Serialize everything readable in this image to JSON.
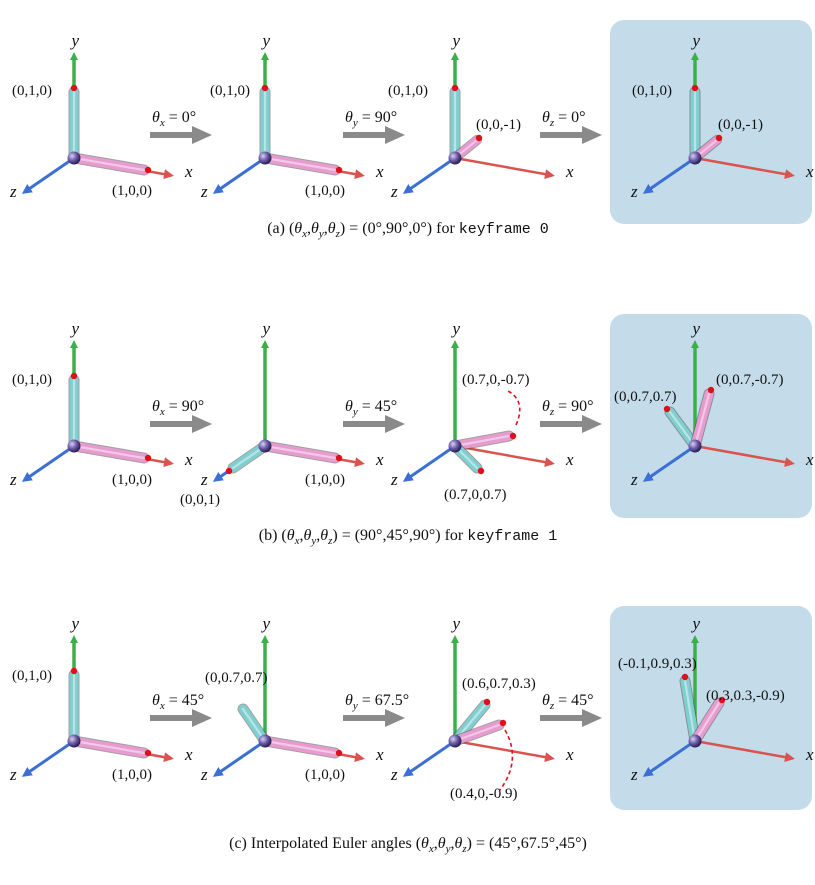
{
  "colors": {
    "y_axis": "#3bb04a",
    "x_axis": "#d9534f",
    "z_axis": "#3b6fd4",
    "cyl_cyan": "#7fcfd0",
    "cyl_pink": "#e79bd0",
    "result_bg": "#c4dcea",
    "marker": "#e0101a",
    "arrow": "#8a8a8a"
  },
  "axis_labels": {
    "x": "x",
    "y": "y",
    "z": "z"
  },
  "rows": [
    {
      "caption": {
        "prefix": "(a) (",
        "tx": "θ",
        "tx_sub": "x",
        "ty": "θ",
        "ty_sub": "y",
        "tz": "θ",
        "tz_sub": "z",
        "middle": ") = (0°,90°,0°) for ",
        "code": "keyframe 0",
        "suffix": ""
      },
      "ops": [
        {
          "sym": "θ",
          "sub": "x",
          "val": " = 0°"
        },
        {
          "sym": "θ",
          "sub": "y",
          "val": " = 90°"
        },
        {
          "sym": "θ",
          "sub": "z",
          "val": " = 0°"
        }
      ],
      "labels": [
        "(0,1,0)",
        "(1,0,0)",
        "(0,1,0)",
        "(1,0,0)",
        "(0,1,0)",
        "(0,0,-1)",
        "(0,1,0)",
        "(0,0,-1)"
      ]
    },
    {
      "caption": {
        "prefix": "(b) (",
        "tx": "θ",
        "tx_sub": "x",
        "ty": "θ",
        "ty_sub": "y",
        "tz": "θ",
        "tz_sub": "z",
        "middle": ") = (90°,45°,90°) for ",
        "code": "keyframe 1",
        "suffix": ""
      },
      "ops": [
        {
          "sym": "θ",
          "sub": "x",
          "val": " = 90°"
        },
        {
          "sym": "θ",
          "sub": "y",
          "val": " = 45°"
        },
        {
          "sym": "θ",
          "sub": "z",
          "val": " = 90°"
        }
      ],
      "labels": [
        "(0,1,0)",
        "(1,0,0)",
        "(0,0,1)",
        "(1,0,0)",
        "(0.7,0,-0.7)",
        "(0.7,0,0.7)",
        "(0,0.7,0.7)",
        "(0,0.7,-0.7)"
      ]
    },
    {
      "caption": {
        "prefix": "(c) Interpolated Euler angles (",
        "tx": "θ",
        "tx_sub": "x",
        "ty": "θ",
        "ty_sub": "y",
        "tz": "θ",
        "tz_sub": "z",
        "middle": ") = (45°,67.5°,45°)",
        "code": "",
        "suffix": ""
      },
      "ops": [
        {
          "sym": "θ",
          "sub": "x",
          "val": " = 45°"
        },
        {
          "sym": "θ",
          "sub": "y",
          "val": " = 67.5°"
        },
        {
          "sym": "θ",
          "sub": "z",
          "val": " = 45°"
        }
      ],
      "labels": [
        "(0,1,0)",
        "(0,0.7,0.7)",
        "(1,0,0)",
        "(1,0,0)",
        "(0.6,0.7,0.3)",
        "(0.4,0,-0.9)",
        "(-0.1,0.9,0.3)",
        "(0.3,0.3,-0.9)"
      ]
    }
  ]
}
